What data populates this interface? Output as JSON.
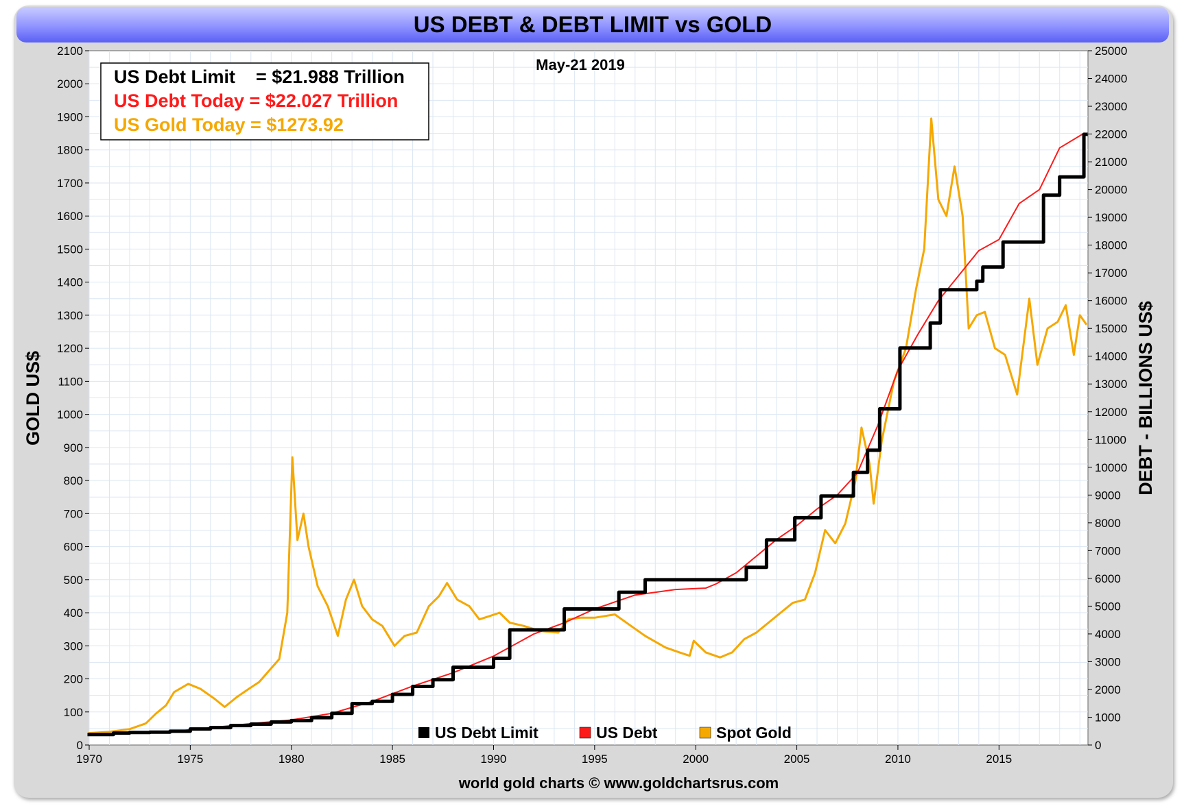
{
  "chart_data": {
    "type": "line",
    "title": "US DEBT & DEBT LIMIT vs GOLD",
    "date_label": "May-21  2019",
    "footer": "world gold charts © www.goldchartsrus.com",
    "info_box": [
      {
        "text": "US Debt Limit    = $21.988 Trillion",
        "color": "#000000"
      },
      {
        "text": "US Debt Today = $22.027 Trillion",
        "color": "#ff1a1a"
      },
      {
        "text": "US Gold Today = $1273.92",
        "color": "#f5a800"
      }
    ],
    "ylabel_left": "GOLD US$",
    "ylabel_right": "DEBT - BILLIONS US$",
    "xlim": [
      1970,
      2019.4
    ],
    "ylim_left": [
      0,
      2100
    ],
    "ylim_right": [
      0,
      25000
    ],
    "x_ticks": [
      "1970",
      "1975",
      "1980",
      "1985",
      "1990",
      "1995",
      "2000",
      "2005",
      "2010",
      "2015"
    ],
    "y_left_ticks": [
      "0",
      "100",
      "200",
      "300",
      "400",
      "500",
      "600",
      "700",
      "800",
      "900",
      "1000",
      "1100",
      "1200",
      "1300",
      "1400",
      "1500",
      "1600",
      "1700",
      "1800",
      "1900",
      "2000",
      "2100"
    ],
    "y_right_ticks": [
      "0",
      "1000",
      "2000",
      "3000",
      "4000",
      "5000",
      "6000",
      "7000",
      "8000",
      "9000",
      "10000",
      "11000",
      "12000",
      "13000",
      "14000",
      "15000",
      "16000",
      "17000",
      "18000",
      "19000",
      "20000",
      "21000",
      "22000",
      "23000",
      "24000",
      "25000"
    ],
    "grid": true,
    "legend_position": "bottom-center",
    "series": [
      {
        "name": "US Debt Limit",
        "axis": "right",
        "color": "#000000",
        "step": true,
        "points": [
          [
            1970,
            377
          ],
          [
            1971.2,
            430
          ],
          [
            1972,
            450
          ],
          [
            1973,
            465
          ],
          [
            1974,
            495
          ],
          [
            1975,
            577
          ],
          [
            1976,
            627
          ],
          [
            1977,
            700
          ],
          [
            1978,
            752
          ],
          [
            1979,
            830
          ],
          [
            1980,
            879
          ],
          [
            1981,
            985
          ],
          [
            1982,
            1143
          ],
          [
            1983,
            1490
          ],
          [
            1984,
            1573
          ],
          [
            1985,
            1823
          ],
          [
            1986,
            2111
          ],
          [
            1987,
            2352
          ],
          [
            1988,
            2800
          ],
          [
            1990,
            3123
          ],
          [
            1990.8,
            4145
          ],
          [
            1993.5,
            4900
          ],
          [
            1996.2,
            5500
          ],
          [
            1997.5,
            5950
          ],
          [
            2002.5,
            6400
          ],
          [
            2003.5,
            7384
          ],
          [
            2004.9,
            8184
          ],
          [
            2006.2,
            8965
          ],
          [
            2007.8,
            9815
          ],
          [
            2008.5,
            10615
          ],
          [
            2009.1,
            12104
          ],
          [
            2010.1,
            14294
          ],
          [
            2011.6,
            15194
          ],
          [
            2012.1,
            16394
          ],
          [
            2013.9,
            16700
          ],
          [
            2014.2,
            17212
          ],
          [
            2015.2,
            18113
          ],
          [
            2017.2,
            19800
          ],
          [
            2018,
            20456
          ],
          [
            2019.2,
            21988
          ],
          [
            2019.3,
            21988
          ]
        ]
      },
      {
        "name": "US Debt",
        "axis": "right",
        "color": "#ff1a1a",
        "step": false,
        "points": [
          [
            1970,
            380
          ],
          [
            1972,
            430
          ],
          [
            1974,
            480
          ],
          [
            1976,
            620
          ],
          [
            1978,
            770
          ],
          [
            1980,
            900
          ],
          [
            1982,
            1140
          ],
          [
            1984,
            1570
          ],
          [
            1986,
            2120
          ],
          [
            1988,
            2600
          ],
          [
            1990,
            3200
          ],
          [
            1992,
            4000
          ],
          [
            1993.5,
            4400
          ],
          [
            1995,
            4900
          ],
          [
            1997,
            5400
          ],
          [
            1999,
            5600
          ],
          [
            2000.5,
            5650
          ],
          [
            2001,
            5800
          ],
          [
            2002,
            6200
          ],
          [
            2003,
            6800
          ],
          [
            2004,
            7400
          ],
          [
            2005,
            7900
          ],
          [
            2006,
            8500
          ],
          [
            2007,
            9000
          ],
          [
            2008,
            9800
          ],
          [
            2009,
            11500
          ],
          [
            2010,
            13500
          ],
          [
            2011,
            14800
          ],
          [
            2012,
            16000
          ],
          [
            2013,
            16900
          ],
          [
            2014,
            17800
          ],
          [
            2015,
            18200
          ],
          [
            2016,
            19500
          ],
          [
            2017,
            20000
          ],
          [
            2018,
            21500
          ],
          [
            2019.2,
            22027
          ]
        ]
      },
      {
        "name": "Spot Gold",
        "axis": "left",
        "color": "#f5a800",
        "step": false,
        "points": [
          [
            1970,
            36
          ],
          [
            1971,
            40
          ],
          [
            1972,
            48
          ],
          [
            1972.8,
            65
          ],
          [
            1973.3,
            95
          ],
          [
            1973.8,
            120
          ],
          [
            1974.2,
            160
          ],
          [
            1974.9,
            185
          ],
          [
            1975.5,
            170
          ],
          [
            1976.2,
            140
          ],
          [
            1976.7,
            115
          ],
          [
            1977.3,
            145
          ],
          [
            1977.9,
            170
          ],
          [
            1978.4,
            190
          ],
          [
            1978.9,
            225
          ],
          [
            1979.4,
            260
          ],
          [
            1979.8,
            400
          ],
          [
            1980.05,
            870
          ],
          [
            1980.3,
            620
          ],
          [
            1980.6,
            700
          ],
          [
            1980.85,
            600
          ],
          [
            1981.3,
            480
          ],
          [
            1981.8,
            420
          ],
          [
            1982.3,
            330
          ],
          [
            1982.7,
            440
          ],
          [
            1983.1,
            500
          ],
          [
            1983.5,
            420
          ],
          [
            1984,
            380
          ],
          [
            1984.5,
            360
          ],
          [
            1985.1,
            300
          ],
          [
            1985.6,
            330
          ],
          [
            1986.2,
            340
          ],
          [
            1986.8,
            420
          ],
          [
            1987.3,
            450
          ],
          [
            1987.7,
            490
          ],
          [
            1988.2,
            440
          ],
          [
            1988.8,
            420
          ],
          [
            1989.3,
            380
          ],
          [
            1989.8,
            390
          ],
          [
            1990.3,
            400
          ],
          [
            1990.8,
            370
          ],
          [
            1991.5,
            360
          ],
          [
            1992.3,
            345
          ],
          [
            1993.2,
            340
          ],
          [
            1993.7,
            380
          ],
          [
            1994.3,
            385
          ],
          [
            1995,
            385
          ],
          [
            1996,
            395
          ],
          [
            1996.8,
            360
          ],
          [
            1997.5,
            330
          ],
          [
            1998.5,
            295
          ],
          [
            1999.2,
            280
          ],
          [
            1999.7,
            270
          ],
          [
            1999.9,
            315
          ],
          [
            2000.5,
            280
          ],
          [
            2001.2,
            265
          ],
          [
            2001.8,
            280
          ],
          [
            2002.4,
            320
          ],
          [
            2003,
            340
          ],
          [
            2003.6,
            370
          ],
          [
            2004.2,
            400
          ],
          [
            2004.8,
            430
          ],
          [
            2005.4,
            440
          ],
          [
            2005.9,
            520
          ],
          [
            2006.4,
            650
          ],
          [
            2006.9,
            610
          ],
          [
            2007.4,
            670
          ],
          [
            2007.9,
            800
          ],
          [
            2008.2,
            960
          ],
          [
            2008.6,
            850
          ],
          [
            2008.8,
            730
          ],
          [
            2009.2,
            920
          ],
          [
            2009.8,
            1100
          ],
          [
            2010.4,
            1200
          ],
          [
            2010.9,
            1380
          ],
          [
            2011.3,
            1500
          ],
          [
            2011.65,
            1895
          ],
          [
            2012,
            1650
          ],
          [
            2012.4,
            1600
          ],
          [
            2012.8,
            1750
          ],
          [
            2013.2,
            1600
          ],
          [
            2013.5,
            1260
          ],
          [
            2013.9,
            1300
          ],
          [
            2014.3,
            1310
          ],
          [
            2014.8,
            1200
          ],
          [
            2015.3,
            1180
          ],
          [
            2015.9,
            1060
          ],
          [
            2016.5,
            1350
          ],
          [
            2016.9,
            1150
          ],
          [
            2017.4,
            1260
          ],
          [
            2017.9,
            1280
          ],
          [
            2018.3,
            1330
          ],
          [
            2018.7,
            1180
          ],
          [
            2019,
            1300
          ],
          [
            2019.3,
            1273.92
          ]
        ]
      }
    ]
  }
}
